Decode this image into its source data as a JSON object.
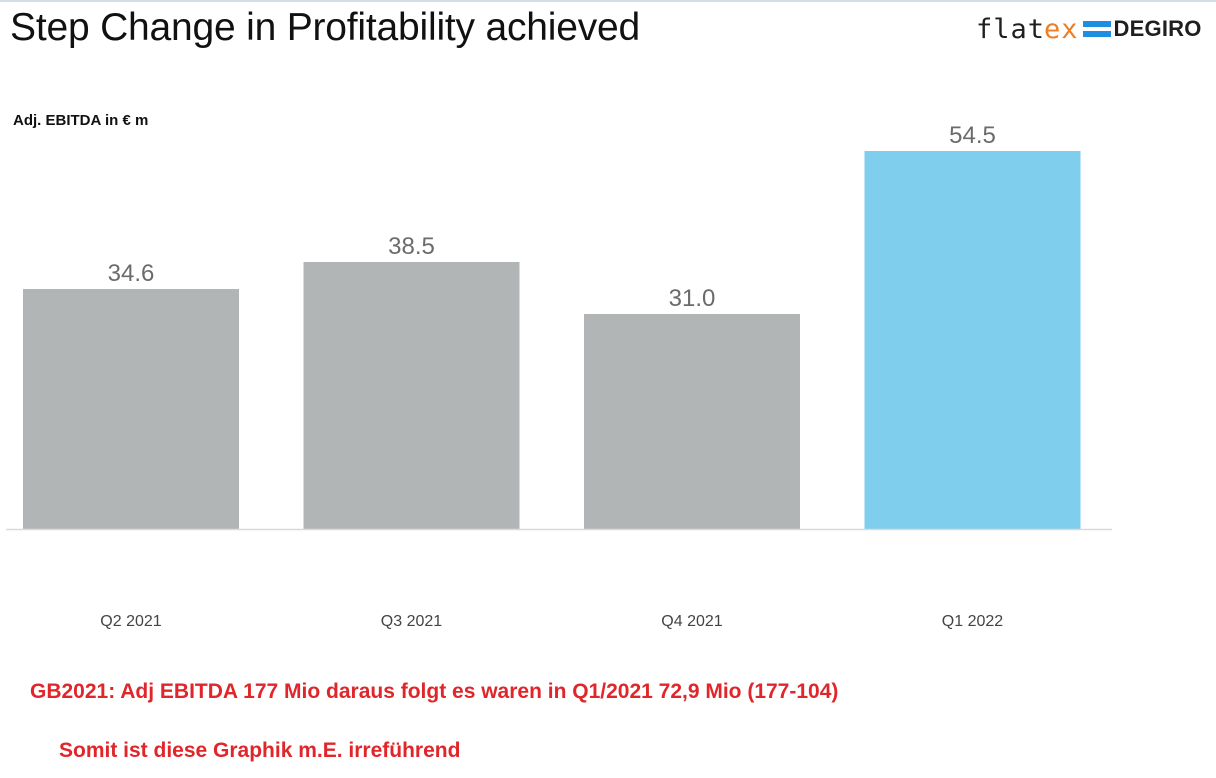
{
  "header": {
    "title": "Step Change in Profitability achieved",
    "logo": {
      "part1": "flat",
      "part2": "ex",
      "part3": "DEGIRO"
    }
  },
  "chart_data": {
    "type": "bar",
    "title": "Step Change in Profitability achieved",
    "ylabel": "Adj. EBITDA in € m",
    "xlabel": "",
    "categories": [
      "Q2 2021",
      "Q3 2021",
      "Q4 2021",
      "Q1 2022"
    ],
    "values": [
      34.6,
      38.5,
      31.0,
      54.5
    ],
    "value_labels": [
      "34.6",
      "38.5",
      "31.0",
      "54.5"
    ],
    "ylim": [
      0,
      54.5
    ],
    "grid": false,
    "bar_colors": [
      "#b2b5b6",
      "#b2b5b6",
      "#b2b5b6",
      "#7fceee"
    ],
    "value_label_color": "#6b6b6b",
    "axis_color": "#d9d9d9"
  },
  "notes": {
    "line1": "GB2021:  Adj EBITDA 177 Mio  daraus folgt es waren in Q1/2021  72,9 Mio  (177-104)",
    "line2": "Somit ist diese Graphik m.E. irreführend",
    "color": "#e0262a"
  }
}
